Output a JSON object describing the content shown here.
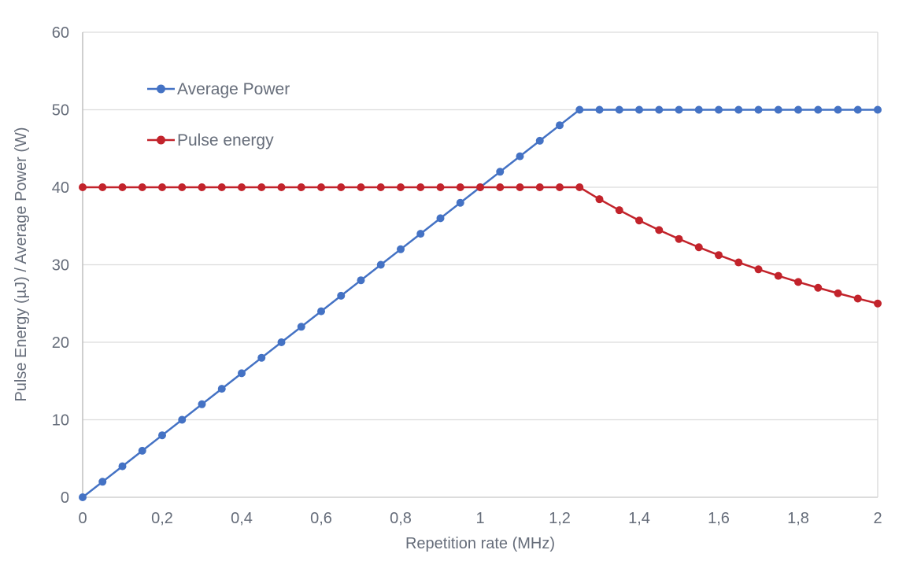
{
  "chart_data": {
    "type": "line",
    "title": "",
    "xlabel": "Repetition rate (MHz)",
    "ylabel": "Pulse Energy (µJ) / Average Power (W)",
    "xlim": [
      0,
      2
    ],
    "ylim": [
      0,
      60
    ],
    "grid": "horizontal",
    "legend_position": "inside-top-left",
    "x_ticks": [
      {
        "value": 0,
        "label": "0"
      },
      {
        "value": 0.2,
        "label": "0,2"
      },
      {
        "value": 0.4,
        "label": "0,4"
      },
      {
        "value": 0.6,
        "label": "0,6"
      },
      {
        "value": 0.8,
        "label": "0,8"
      },
      {
        "value": 1,
        "label": "1"
      },
      {
        "value": 1.2,
        "label": "1,2"
      },
      {
        "value": 1.4,
        "label": "1,4"
      },
      {
        "value": 1.6,
        "label": "1,6"
      },
      {
        "value": 1.8,
        "label": "1,8"
      },
      {
        "value": 2,
        "label": "2"
      }
    ],
    "y_ticks": [
      {
        "value": 0,
        "label": "0"
      },
      {
        "value": 10,
        "label": "10"
      },
      {
        "value": 20,
        "label": "20"
      },
      {
        "value": 30,
        "label": "30"
      },
      {
        "value": 40,
        "label": "40"
      },
      {
        "value": 50,
        "label": "50"
      },
      {
        "value": 60,
        "label": "60"
      }
    ],
    "x": [
      0,
      0.05,
      0.1,
      0.15,
      0.2,
      0.25,
      0.3,
      0.35,
      0.4,
      0.45,
      0.5,
      0.55,
      0.6,
      0.65,
      0.7,
      0.75,
      0.8,
      0.85,
      0.9,
      0.95,
      1.0,
      1.05,
      1.1,
      1.15,
      1.2,
      1.25,
      1.3,
      1.35,
      1.4,
      1.45,
      1.5,
      1.55,
      1.6,
      1.65,
      1.7,
      1.75,
      1.8,
      1.85,
      1.9,
      1.95,
      2.0
    ],
    "series": [
      {
        "name": "Average Power",
        "color": "#4472C4",
        "values": [
          0,
          2,
          4,
          6,
          8,
          10,
          12,
          14,
          16,
          18,
          20,
          22,
          24,
          26,
          28,
          30,
          32,
          34,
          36,
          38,
          40,
          42,
          44,
          46,
          48,
          50,
          50,
          50,
          50,
          50,
          50,
          50,
          50,
          50,
          50,
          50,
          50,
          50,
          50,
          50,
          50
        ]
      },
      {
        "name": "Pulse energy",
        "color": "#C2232B",
        "values": [
          40,
          40,
          40,
          40,
          40,
          40,
          40,
          40,
          40,
          40,
          40,
          40,
          40,
          40,
          40,
          40,
          40,
          40,
          40,
          40,
          40,
          40,
          40,
          40,
          40,
          40,
          38.46,
          37.04,
          35.71,
          34.48,
          33.33,
          32.26,
          31.25,
          30.3,
          29.41,
          28.57,
          27.78,
          27.03,
          26.32,
          25.64,
          25
        ]
      }
    ],
    "colors": {
      "gridline": "#dcdcdc",
      "axis_line": "#bfbfbf",
      "border_line": "#d9d9d9",
      "text": "#666d7a"
    }
  }
}
